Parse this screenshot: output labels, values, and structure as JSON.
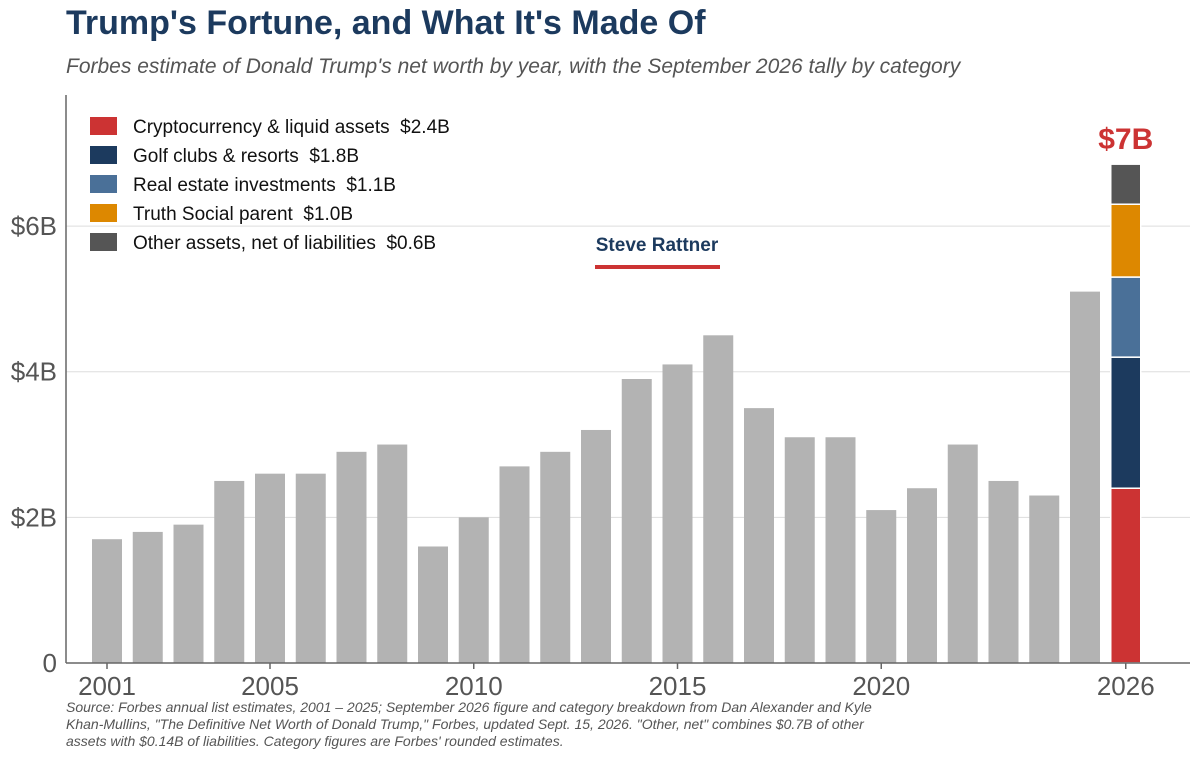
{
  "title": "Trump's Fortune, and What It's Made Of",
  "subtitle": "Forbes estimate of Donald Trump's net worth by year, with the September 2026 tally by category",
  "source": "Source: Forbes annual list estimates, 2001 – 2025; September 2026 figure and category breakdown from Dan Alexander and Kyle Khan-Mullins, \"The Definitive Net Worth of Donald Trump,\" Forbes, updated Sept. 15, 2026. \"Other, net\" combines $0.7B of other assets with $0.14B of liabilities. Category figures are Forbes' rounded estimates.",
  "brand": "Steve Rattner",
  "colors": {
    "history_bar": "#b3b3b3",
    "accent": "#cc3333",
    "navy": "#1c3a5e",
    "gridline": "#dddddd",
    "axis": "#666666"
  },
  "chart_data": {
    "type": "bar",
    "x": [
      2001,
      2002,
      2003,
      2004,
      2005,
      2006,
      2007,
      2008,
      2009,
      2010,
      2011,
      2012,
      2013,
      2014,
      2015,
      2016,
      2017,
      2018,
      2019,
      2020,
      2021,
      2022,
      2023,
      2024,
      2025
    ],
    "values": [
      1.7,
      1.8,
      1.9,
      2.5,
      2.6,
      2.6,
      2.9,
      3.0,
      1.6,
      2.0,
      2.7,
      2.9,
      3.2,
      3.9,
      4.1,
      4.5,
      3.5,
      3.1,
      3.1,
      2.1,
      2.4,
      3.0,
      2.5,
      2.3,
      5.1
    ],
    "ylim": [
      0,
      7.8
    ],
    "yticks": [
      {
        "value": 0,
        "label": "0"
      },
      {
        "value": 2,
        "label": "$2B"
      },
      {
        "value": 4,
        "label": "$4B"
      },
      {
        "value": 6,
        "label": "$6B"
      }
    ],
    "xticks": [
      {
        "value": 2001,
        "label": "2001"
      },
      {
        "value": 2005,
        "label": "2005"
      },
      {
        "value": 2010,
        "label": "2010"
      },
      {
        "value": 2015,
        "label": "2015"
      },
      {
        "value": 2020,
        "label": "2020"
      },
      {
        "value": 2026,
        "label": "2026"
      }
    ],
    "grid": true,
    "legend_position": "top-left",
    "stacked": {
      "x": 2026,
      "total_label": "$7B",
      "segments": [
        {
          "name": "Cryptocurrency & liquid assets",
          "value": 2.4,
          "label": "$2.4B",
          "color": "#cc3333"
        },
        {
          "name": "Golf clubs & resorts",
          "value": 1.8,
          "label": "$1.8B",
          "color": "#1c3a5e"
        },
        {
          "name": "Real estate investments",
          "value": 1.1,
          "label": "$1.1B",
          "color": "#4a7098"
        },
        {
          "name": "Truth Social parent",
          "value": 1.0,
          "label": "$1.0B",
          "color": "#dd8800"
        },
        {
          "name": "Other assets, net of liabilities",
          "value": 0.55,
          "label": "$0.6B",
          "color": "#555555"
        }
      ]
    }
  }
}
